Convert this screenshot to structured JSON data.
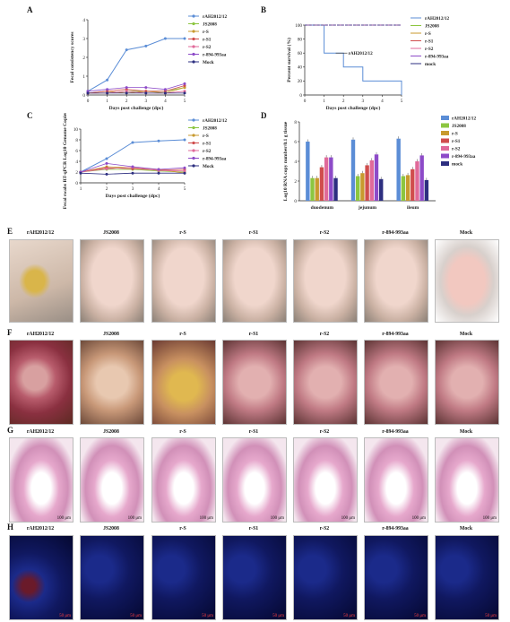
{
  "panels": {
    "A": "A",
    "B": "B",
    "C": "C",
    "D": "D",
    "E": "E",
    "F": "F",
    "G": "G",
    "H": "H"
  },
  "legend6": [
    "rAH2012/12",
    "JS2008",
    "r-S",
    "r-S1",
    "r-S2",
    "r-894-993aa",
    "Mock"
  ],
  "legendB": [
    "rAH2012/12",
    "JS2008",
    "r-S",
    "r-S1",
    "r-S2",
    "r-894-993aa",
    "mock"
  ],
  "legendD": [
    "rAH2012/12",
    "JS2008",
    "r-S",
    "r-S1",
    "r-S2",
    "r-894-993aa",
    "mock"
  ],
  "colors": {
    "rAH": "#5b8dd6",
    "JS": "#8cc640",
    "rS": "#c89a2e",
    "rS1": "#d04d4d",
    "rS2": "#e06a9a",
    "r894": "#8d4bc8",
    "mock": "#2d2f80"
  },
  "chart_data": [
    {
      "type": "line",
      "panel": "A",
      "xlabel": "Days post challenge (dpc)",
      "ylabel": "Fecal consistency scores",
      "x": [
        0,
        1,
        2,
        3,
        4,
        5
      ],
      "ylim": [
        0,
        4
      ],
      "series": [
        {
          "name": "rAH2012/12",
          "values": [
            0.2,
            0.8,
            2.4,
            2.6,
            3.0,
            3.0
          ]
        },
        {
          "name": "JS2008",
          "values": [
            0.1,
            0.1,
            0.2,
            0.2,
            0.2,
            0.4
          ]
        },
        {
          "name": "r-S",
          "values": [
            0.1,
            0.2,
            0.1,
            0.2,
            0.1,
            0.4
          ]
        },
        {
          "name": "r-S1",
          "values": [
            0.1,
            0.2,
            0.3,
            0.2,
            0.2,
            0.5
          ]
        },
        {
          "name": "r-S2",
          "values": [
            0.1,
            0.1,
            0.2,
            0.1,
            0.1,
            0.2
          ]
        },
        {
          "name": "r-894-993aa",
          "values": [
            0.2,
            0.3,
            0.4,
            0.4,
            0.3,
            0.6
          ]
        },
        {
          "name": "Mock",
          "values": [
            0.1,
            0.1,
            0.1,
            0.1,
            0.1,
            0.1
          ]
        }
      ]
    },
    {
      "type": "line",
      "panel": "B",
      "xlabel": "Days post challenge (dpc)",
      "ylabel": "Percent survival (%)",
      "x": [
        0,
        1,
        2,
        3,
        4,
        5
      ],
      "ylim": [
        0,
        100
      ],
      "annotation": "rAH2012/12",
      "series": [
        {
          "name": "rAH2012/12",
          "values": [
            100,
            60,
            40,
            20,
            20,
            0
          ]
        },
        {
          "name": "JS2008",
          "values": [
            100,
            100,
            100,
            100,
            100,
            100
          ]
        },
        {
          "name": "r-S",
          "values": [
            100,
            100,
            100,
            100,
            100,
            100
          ]
        },
        {
          "name": "r-S1",
          "values": [
            100,
            100,
            100,
            100,
            100,
            100
          ]
        },
        {
          "name": "r-S2",
          "values": [
            100,
            100,
            100,
            100,
            100,
            100
          ]
        },
        {
          "name": "r-894-993aa",
          "values": [
            100,
            100,
            100,
            100,
            100,
            100
          ]
        },
        {
          "name": "mock",
          "values": [
            100,
            100,
            100,
            100,
            100,
            100
          ]
        }
      ]
    },
    {
      "type": "line",
      "panel": "C",
      "xlabel": "Days post challenge (dpc)",
      "ylabel": "Fecal swabs RT-qPCR Log10 Genome Copies/mL",
      "x": [
        1,
        2,
        3,
        4,
        5
      ],
      "ylim": [
        0,
        10
      ],
      "series": [
        {
          "name": "rAH2012/12",
          "values": [
            2.0,
            4.5,
            7.5,
            7.8,
            8.0
          ]
        },
        {
          "name": "JS2008",
          "values": [
            2.0,
            2.5,
            2.5,
            2.2,
            2.0
          ]
        },
        {
          "name": "r-S",
          "values": [
            2.0,
            3.0,
            2.8,
            2.5,
            1.8
          ]
        },
        {
          "name": "r-S1",
          "values": [
            2.0,
            2.8,
            2.6,
            2.4,
            2.5
          ]
        },
        {
          "name": "r-S2",
          "values": [
            2.0,
            2.6,
            2.9,
            2.3,
            2.2
          ]
        },
        {
          "name": "r-894-993aa",
          "values": [
            2.0,
            3.6,
            3.0,
            2.5,
            2.8
          ]
        },
        {
          "name": "Mock",
          "values": [
            1.8,
            1.6,
            1.8,
            1.8,
            1.8
          ]
        }
      ]
    },
    {
      "type": "bar",
      "panel": "D",
      "ylabel": "Log10 RNA copy number/0.1 g tissue",
      "categories": [
        "duodenum",
        "jejunum",
        "ileum"
      ],
      "ylim": [
        0,
        8
      ],
      "series": [
        {
          "name": "rAH2012/12",
          "values": [
            6.0,
            6.2,
            6.3
          ]
        },
        {
          "name": "JS2008",
          "values": [
            2.3,
            2.5,
            2.5
          ]
        },
        {
          "name": "r-S",
          "values": [
            2.3,
            2.8,
            2.6
          ]
        },
        {
          "name": "r-S1",
          "values": [
            3.4,
            3.6,
            3.2
          ]
        },
        {
          "name": "r-S2",
          "values": [
            4.4,
            4.1,
            4.0
          ]
        },
        {
          "name": "r-894-993aa",
          "values": [
            4.4,
            4.7,
            4.6
          ]
        },
        {
          "name": "mock",
          "values": [
            2.3,
            2.2,
            2.1
          ]
        }
      ]
    }
  ],
  "tick_labels": {
    "A_y": [
      "0",
      "1",
      "2",
      "3",
      "4"
    ],
    "A_x": [
      "0",
      "1",
      "2",
      "3",
      "4",
      "5"
    ],
    "B_y": [
      "0",
      "20",
      "40",
      "60",
      "80",
      "100"
    ],
    "B_x": [
      "0",
      "1",
      "2",
      "3",
      "4",
      "5"
    ],
    "C_y": [
      "0",
      "2",
      "4",
      "6",
      "8",
      "10"
    ],
    "C_x": [
      "1",
      "2",
      "3",
      "4",
      "5"
    ],
    "D_y": [
      "0",
      "2",
      "4",
      "6",
      "8"
    ]
  },
  "groups": [
    "rAH2012/12",
    "JS2008",
    "r-S",
    "r-S1",
    "r-S2",
    "r-894-993aa",
    "Mock"
  ],
  "scale_G": "100 μm",
  "scale_H": "50 μm"
}
